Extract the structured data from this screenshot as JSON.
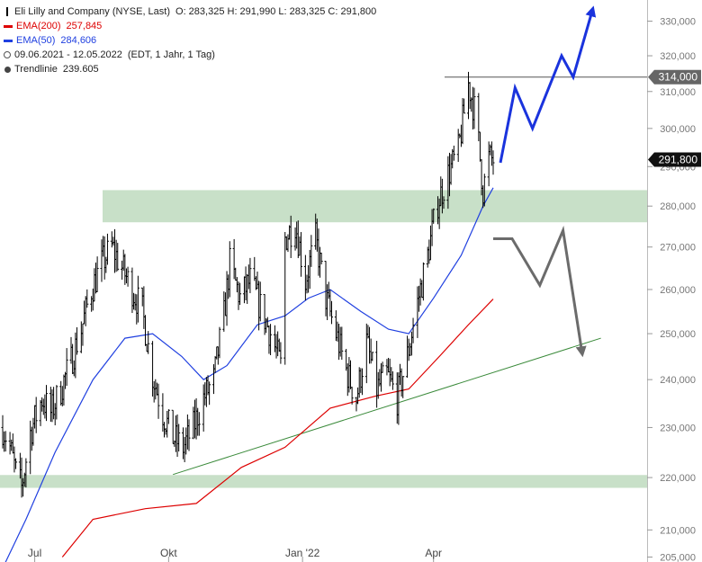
{
  "legend": {
    "title": "Eli Lilly and Company (NYSE, Last)",
    "ohlc": "O: 283,325  H: 291,990  L: 283,325  C: 291,800",
    "ema200_label": "EMA(200)",
    "ema200_value": "257,845",
    "ema50_label": "EMA(50)",
    "ema50_value": "284,606",
    "period": "09.06.2021 - 12.05.2022",
    "period_info": "(EDT, 1 Jahr, 1 Tag)",
    "trend_label": "Trendlinie",
    "trend_value": "239.605"
  },
  "colors": {
    "price": "#000000",
    "ema200": "#dd0000",
    "ema50": "#2040e0",
    "zone": "#c8e0c8",
    "trendline": "#3a8a3a",
    "bull_arrow": "#1a33dd",
    "bear_arrow": "#6b6b6b",
    "price_tag": "#111111",
    "resistance_tag": "#666666"
  },
  "chart_data": {
    "type": "candlestick",
    "x_tick_labels": [
      "Jul",
      "Okt",
      "Jan '22",
      "Apr"
    ],
    "y_tick_labels": [
      "205,000",
      "210,000",
      "220,000",
      "230,000",
      "240,000",
      "250,000",
      "260,000",
      "270,000",
      "280,000",
      "290,000",
      "300,000",
      "310,000",
      "320,000",
      "330,000"
    ],
    "y_ticks": [
      205,
      210,
      220,
      230,
      240,
      250,
      260,
      270,
      280,
      290,
      300,
      310,
      320,
      330
    ],
    "ylim": [
      205,
      333
    ],
    "y_scale": "log",
    "x_range": [
      "2021-06-09",
      "2022-05-12"
    ],
    "price_path": [
      {
        "date": "2021-06-09",
        "close": 230
      },
      {
        "date": "2021-06-14",
        "close": 226
      },
      {
        "date": "2021-06-18",
        "close": 221
      },
      {
        "date": "2021-06-22",
        "close": 218
      },
      {
        "date": "2021-06-28",
        "close": 229
      },
      {
        "date": "2021-07-06",
        "close": 236
      },
      {
        "date": "2021-07-12",
        "close": 233
      },
      {
        "date": "2021-07-19",
        "close": 238
      },
      {
        "date": "2021-07-26",
        "close": 244
      },
      {
        "date": "2021-08-02",
        "close": 251
      },
      {
        "date": "2021-08-09",
        "close": 260
      },
      {
        "date": "2021-08-16",
        "close": 266
      },
      {
        "date": "2021-08-23",
        "close": 270
      },
      {
        "date": "2021-08-30",
        "close": 265
      },
      {
        "date": "2021-09-06",
        "close": 260
      },
      {
        "date": "2021-09-13",
        "close": 255
      },
      {
        "date": "2021-09-20",
        "close": 241
      },
      {
        "date": "2021-09-27",
        "close": 233
      },
      {
        "date": "2021-10-04",
        "close": 228
      },
      {
        "date": "2021-10-11",
        "close": 226
      },
      {
        "date": "2021-10-18",
        "close": 230
      },
      {
        "date": "2021-10-25",
        "close": 236
      },
      {
        "date": "2021-11-01",
        "close": 240
      },
      {
        "date": "2021-11-08",
        "close": 254
      },
      {
        "date": "2021-11-12",
        "close": 266
      },
      {
        "date": "2021-11-19",
        "close": 258
      },
      {
        "date": "2021-11-26",
        "close": 262
      },
      {
        "date": "2021-12-03",
        "close": 256
      },
      {
        "date": "2021-12-10",
        "close": 250
      },
      {
        "date": "2021-12-17",
        "close": 243
      },
      {
        "date": "2021-12-20",
        "close": 272
      },
      {
        "date": "2021-12-27",
        "close": 276
      },
      {
        "date": "2022-01-03",
        "close": 262
      },
      {
        "date": "2022-01-10",
        "close": 272
      },
      {
        "date": "2022-01-17",
        "close": 258
      },
      {
        "date": "2022-01-24",
        "close": 250
      },
      {
        "date": "2022-01-31",
        "close": 242
      },
      {
        "date": "2022-02-07",
        "close": 236
      },
      {
        "date": "2022-02-14",
        "close": 248
      },
      {
        "date": "2022-02-21",
        "close": 238
      },
      {
        "date": "2022-02-28",
        "close": 241
      },
      {
        "date": "2022-03-07",
        "close": 236
      },
      {
        "date": "2022-03-14",
        "close": 245
      },
      {
        "date": "2022-03-21",
        "close": 257
      },
      {
        "date": "2022-03-28",
        "close": 268
      },
      {
        "date": "2022-04-04",
        "close": 281
      },
      {
        "date": "2022-04-11",
        "close": 288
      },
      {
        "date": "2022-04-18",
        "close": 294
      },
      {
        "date": "2022-04-25",
        "close": 312
      },
      {
        "date": "2022-04-29",
        "close": 305
      },
      {
        "date": "2022-05-02",
        "close": 296
      },
      {
        "date": "2022-05-05",
        "close": 284
      },
      {
        "date": "2022-05-09",
        "close": 292
      },
      {
        "date": "2022-05-12",
        "close": 291.8
      }
    ],
    "series": [
      {
        "name": "EMA(200)",
        "points": [
          {
            "date": "2021-07-20",
            "y": 205
          },
          {
            "date": "2021-08-10",
            "y": 212
          },
          {
            "date": "2021-09-15",
            "y": 214
          },
          {
            "date": "2021-10-20",
            "y": 215
          },
          {
            "date": "2021-11-20",
            "y": 222
          },
          {
            "date": "2021-12-20",
            "y": 226
          },
          {
            "date": "2022-01-20",
            "y": 234
          },
          {
            "date": "2022-02-20",
            "y": 236.5
          },
          {
            "date": "2022-03-15",
            "y": 238
          },
          {
            "date": "2022-04-05",
            "y": 245
          },
          {
            "date": "2022-04-25",
            "y": 252
          },
          {
            "date": "2022-05-12",
            "y": 257.8
          }
        ]
      },
      {
        "name": "EMA(50)",
        "points": [
          {
            "date": "2021-06-09",
            "y": 203
          },
          {
            "date": "2021-06-25",
            "y": 212
          },
          {
            "date": "2021-07-15",
            "y": 225
          },
          {
            "date": "2021-08-10",
            "y": 240
          },
          {
            "date": "2021-09-01",
            "y": 249
          },
          {
            "date": "2021-09-20",
            "y": 250
          },
          {
            "date": "2021-10-10",
            "y": 245
          },
          {
            "date": "2021-10-25",
            "y": 240
          },
          {
            "date": "2021-11-10",
            "y": 243
          },
          {
            "date": "2021-12-01",
            "y": 252
          },
          {
            "date": "2021-12-20",
            "y": 254
          },
          {
            "date": "2022-01-05",
            "y": 258
          },
          {
            "date": "2022-01-20",
            "y": 260
          },
          {
            "date": "2022-02-10",
            "y": 255
          },
          {
            "date": "2022-03-01",
            "y": 251
          },
          {
            "date": "2022-03-15",
            "y": 250
          },
          {
            "date": "2022-04-01",
            "y": 258
          },
          {
            "date": "2022-04-20",
            "y": 268
          },
          {
            "date": "2022-05-05",
            "y": 280
          },
          {
            "date": "2022-05-12",
            "y": 284.6
          }
        ]
      }
    ],
    "zones": [
      {
        "from": 276,
        "to": 284
      },
      {
        "from": 218,
        "to": 220.5
      }
    ],
    "resistance": 314,
    "last_price": 291.8,
    "trendline": [
      {
        "date": "2021-10-04",
        "y": 220.6
      },
      {
        "date": "2022-07-25",
        "y": 249
      }
    ],
    "scenario_up": [
      {
        "date": "2022-05-12",
        "y": 291
      },
      {
        "date": "2022-05-27",
        "y": 311
      },
      {
        "date": "2022-06-08",
        "y": 300
      },
      {
        "date": "2022-06-28",
        "y": 320
      },
      {
        "date": "2022-07-06",
        "y": 314
      },
      {
        "date": "2022-07-19",
        "y": 333
      }
    ],
    "scenario_down": [
      {
        "date": "2022-05-12",
        "y": 272
      },
      {
        "date": "2022-05-25",
        "y": 272
      },
      {
        "date": "2022-06-13",
        "y": 261
      },
      {
        "date": "2022-06-29",
        "y": 274
      },
      {
        "date": "2022-07-12",
        "y": 246
      }
    ],
    "price_tags": [
      "314,000",
      "291,800"
    ]
  }
}
